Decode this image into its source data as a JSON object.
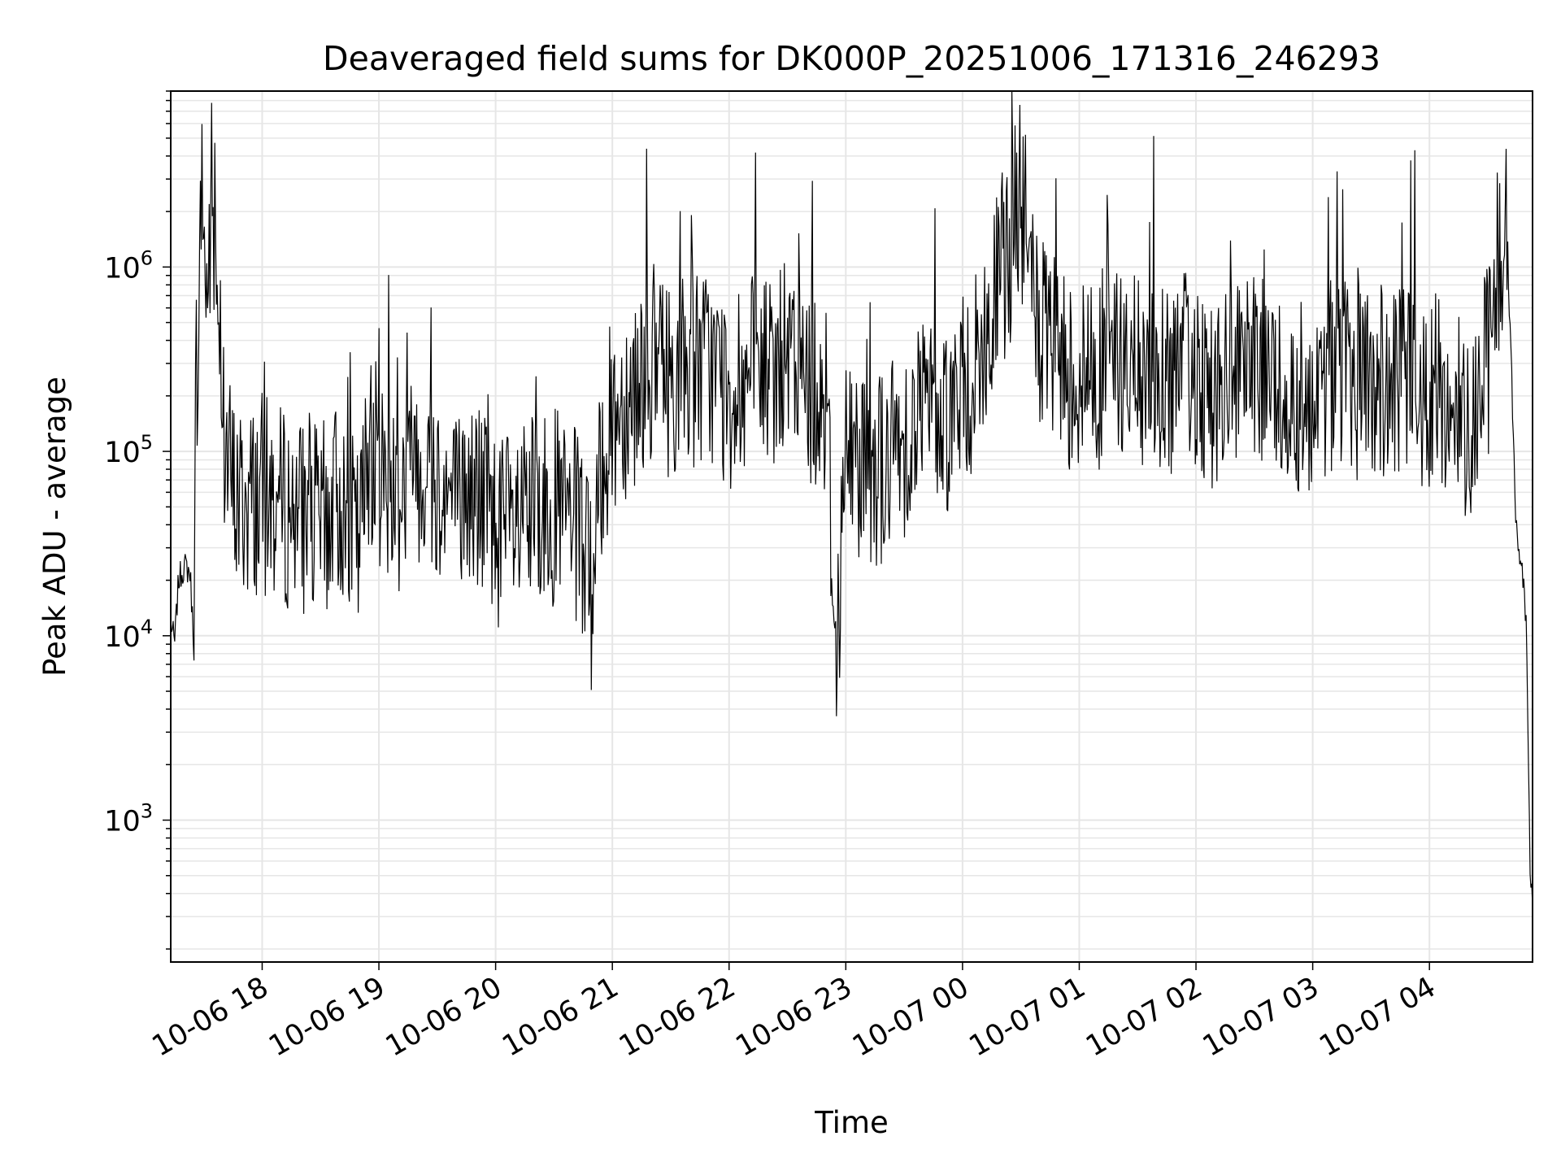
{
  "chart_data": {
    "type": "line",
    "title": "Deaveraged field sums for DK000P_20251006_171316_246293",
    "xlabel": "Time",
    "ylabel": "Peak ADU - average",
    "yscale": "log",
    "grid": true,
    "grid_minor": true,
    "legend": "none",
    "xlim": [
      "2025-10-06 17:13",
      "2025-10-07 04:53"
    ],
    "ylim": [
      170,
      9000000
    ],
    "x_ticks": [
      {
        "t": "2025-10-06 18:00",
        "label": "10-06 18"
      },
      {
        "t": "2025-10-06 19:00",
        "label": "10-06 19"
      },
      {
        "t": "2025-10-06 20:00",
        "label": "10-06 20"
      },
      {
        "t": "2025-10-06 21:00",
        "label": "10-06 21"
      },
      {
        "t": "2025-10-06 22:00",
        "label": "10-06 22"
      },
      {
        "t": "2025-10-06 23:00",
        "label": "10-06 23"
      },
      {
        "t": "2025-10-07 00:00",
        "label": "10-07 00"
      },
      {
        "t": "2025-10-07 01:00",
        "label": "10-07 01"
      },
      {
        "t": "2025-10-07 02:00",
        "label": "10-07 02"
      },
      {
        "t": "2025-10-07 03:00",
        "label": "10-07 03"
      },
      {
        "t": "2025-10-07 04:00",
        "label": "10-07 04"
      }
    ],
    "y_ticks": [
      {
        "value": 1000,
        "base": "10",
        "exp": "3"
      },
      {
        "value": 10000,
        "base": "10",
        "exp": "4"
      },
      {
        "value": 100000,
        "base": "10",
        "exp": "5"
      },
      {
        "value": 1000000,
        "base": "10",
        "exp": "6"
      }
    ],
    "line_color": "#000000",
    "grid_color": "#e6e6e6",
    "series": [
      {
        "x": [
          "2025-10-06 17:13",
          "2025-10-06 17:15",
          "2025-10-06 17:17",
          "2025-10-06 17:20",
          "2025-10-06 17:23",
          "2025-10-06 17:25",
          "2025-10-06 17:26",
          "2025-10-06 17:28",
          "2025-10-06 17:29",
          "2025-10-06 17:30",
          "2025-10-06 17:31",
          "2025-10-06 17:32",
          "2025-10-06 17:34",
          "2025-10-06 17:36",
          "2025-10-06 17:38",
          "2025-10-06 17:40",
          "2025-10-06 17:45",
          "2025-10-06 17:50",
          "2025-10-06 17:55",
          "2025-10-06 18:00",
          "2025-10-06 18:10",
          "2025-10-06 18:20",
          "2025-10-06 18:30",
          "2025-10-06 18:40",
          "2025-10-06 18:50",
          "2025-10-06 18:55",
          "2025-10-06 19:00",
          "2025-10-06 19:10",
          "2025-10-06 19:20",
          "2025-10-06 19:30",
          "2025-10-06 19:40",
          "2025-10-06 19:50",
          "2025-10-06 20:00",
          "2025-10-06 20:10",
          "2025-10-06 20:20",
          "2025-10-06 20:30",
          "2025-10-06 20:40",
          "2025-10-06 20:45",
          "2025-10-06 20:50",
          "2025-10-06 20:55",
          "2025-10-06 21:00",
          "2025-10-06 21:10",
          "2025-10-06 21:20",
          "2025-10-06 21:30",
          "2025-10-06 21:40",
          "2025-10-06 21:50",
          "2025-10-06 22:00",
          "2025-10-06 22:10",
          "2025-10-06 22:20",
          "2025-10-06 22:30",
          "2025-10-06 22:40",
          "2025-10-06 22:50",
          "2025-10-06 22:55",
          "2025-10-06 23:00",
          "2025-10-06 23:10",
          "2025-10-06 23:20",
          "2025-10-06 23:30",
          "2025-10-06 23:40",
          "2025-10-06 23:50",
          "2025-10-07 00:00",
          "2025-10-07 00:10",
          "2025-10-07 00:20",
          "2025-10-07 00:30",
          "2025-10-07 00:40",
          "2025-10-07 00:50",
          "2025-10-07 01:00",
          "2025-10-07 01:10",
          "2025-10-07 01:20",
          "2025-10-07 01:30",
          "2025-10-07 01:40",
          "2025-10-07 01:50",
          "2025-10-07 02:00",
          "2025-10-07 02:10",
          "2025-10-07 02:20",
          "2025-10-07 02:30",
          "2025-10-07 02:40",
          "2025-10-07 02:50",
          "2025-10-07 03:00",
          "2025-10-07 03:10",
          "2025-10-07 03:20",
          "2025-10-07 03:30",
          "2025-10-07 03:40",
          "2025-10-07 03:50",
          "2025-10-07 04:00",
          "2025-10-07 04:10",
          "2025-10-07 04:20",
          "2025-10-07 04:30",
          "2025-10-07 04:35",
          "2025-10-07 04:40",
          "2025-10-07 04:45",
          "2025-10-07 04:48",
          "2025-10-07 04:50",
          "2025-10-07 04:52"
        ],
        "y": [
          12000,
          9000,
          20000,
          24000,
          22000,
          8500,
          260000,
          700000,
          5500000,
          900000,
          1100000,
          650000,
          2600000,
          700000,
          900000,
          120000,
          60000,
          50000,
          55000,
          60000,
          50000,
          45000,
          40000,
          55000,
          30000,
          120000,
          80000,
          60000,
          90000,
          70000,
          50000,
          60000,
          40000,
          35000,
          45000,
          50000,
          40000,
          30000,
          15000,
          100000,
          150000,
          220000,
          300000,
          250000,
          280000,
          300000,
          200000,
          250000,
          280000,
          300000,
          240000,
          200000,
          8000,
          100000,
          90000,
          80000,
          120000,
          180000,
          150000,
          200000,
          300000,
          900000,
          2300000,
          400000,
          300000,
          250000,
          280000,
          300000,
          250000,
          250000,
          270000,
          280000,
          200000,
          220000,
          250000,
          230000,
          200000,
          200000,
          260000,
          250000,
          240000,
          220000,
          230000,
          210000,
          190000,
          150000,
          300000,
          1100000,
          1400000,
          30000,
          22000,
          10000,
          400
        ],
        "notes": "approximate trace read from log-scale axis"
      }
    ]
  }
}
